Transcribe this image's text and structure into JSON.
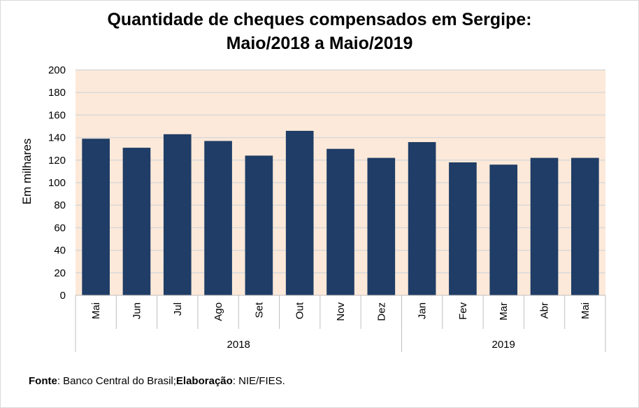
{
  "chart_data": {
    "type": "bar",
    "title_line1": "Quantidade de cheques compensados em Sergipe:",
    "title_line2": "Maio/2018 a Maio/2019",
    "ylabel": "Em milhares",
    "xlabel": "",
    "ylim": [
      0,
      200
    ],
    "yticks": [
      0,
      20,
      40,
      60,
      80,
      100,
      120,
      140,
      160,
      180,
      200
    ],
    "grid": true,
    "categories": [
      "Mai",
      "Jun",
      "Jul",
      "Ago",
      "Set",
      "Out",
      "Nov",
      "Dez",
      "Jan",
      "Fev",
      "Mar",
      "Abr",
      "Mai"
    ],
    "groups": [
      {
        "label": "2018",
        "count": 8
      },
      {
        "label": "2019",
        "count": 5
      }
    ],
    "values": [
      139,
      131,
      143,
      137,
      124,
      146,
      130,
      122,
      136,
      118,
      116,
      122,
      122
    ],
    "colors": {
      "bar": "#1f3d66",
      "plot_bg": "#fde9d9",
      "grid": "#d9d9d9"
    }
  },
  "source": {
    "label1": "Fonte",
    "text1": ": Banco Central do Brasil;",
    "label2": "Elaboração",
    "text2": ": NIE/FIES."
  }
}
